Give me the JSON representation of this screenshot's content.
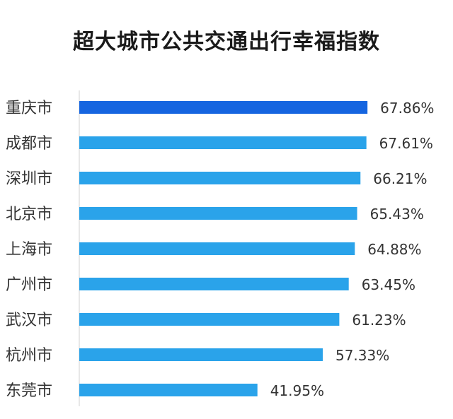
{
  "chart_data": {
    "type": "bar",
    "orientation": "horizontal",
    "title": "超大城市公共交通出行幸福指数",
    "categories": [
      "重庆市",
      "成都市",
      "深圳市",
      "北京市",
      "上海市",
      "广州市",
      "武汉市",
      "杭州市",
      "东莞市"
    ],
    "values": [
      67.86,
      67.61,
      66.21,
      65.43,
      64.88,
      63.45,
      61.23,
      57.33,
      41.95
    ],
    "value_labels": [
      "67.86%",
      "67.61%",
      "66.21%",
      "65.43%",
      "64.88%",
      "63.45%",
      "61.23%",
      "57.33%",
      "41.95%"
    ],
    "xlim": [
      0,
      100
    ],
    "grid": false,
    "colors": {
      "highlight": "#1565e0",
      "bar": "#2aa3ea",
      "axis": "#d0d0d0"
    }
  }
}
